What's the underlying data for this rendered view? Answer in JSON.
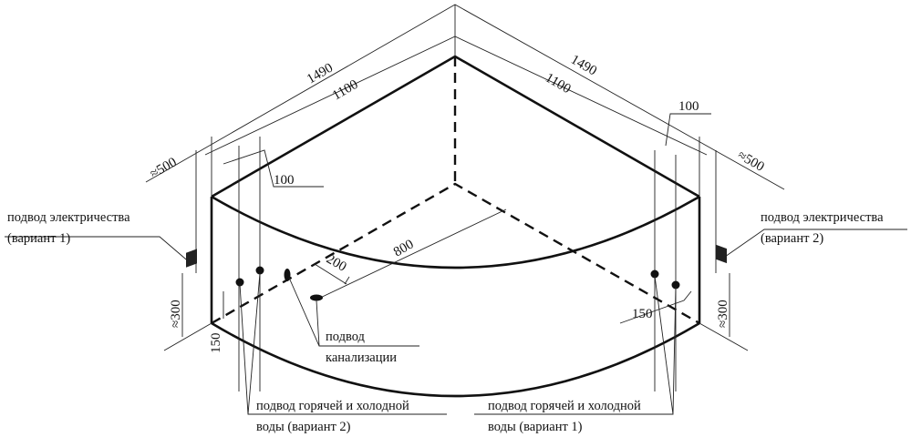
{
  "dimensions": {
    "left_outer": "1490",
    "left_inner": "1100",
    "right_outer": "1490",
    "right_inner": "1100",
    "left_offset_100": "100",
    "right_offset_100": "100",
    "left_approx_500": "≈500",
    "right_approx_500": "≈500",
    "left_approx_300": "≈300",
    "right_approx_300": "≈300",
    "left_150": "150",
    "right_150": "150",
    "drain_200": "200",
    "drain_800": "800"
  },
  "labels": {
    "electric_1_line1": "подвод электричества",
    "electric_1_line2": "(вариант 1)",
    "electric_2_line1": "подвод электричества",
    "electric_2_line2": "(вариант 2)",
    "drain_line1": "подвод",
    "drain_line2": "канализации",
    "water_2_line1": "подвод горячей и холодной",
    "water_2_line2": "воды (вариант 2)",
    "water_1_line1": "подвод горячей и холодной",
    "water_1_line2": "воды (вариант 1)"
  }
}
